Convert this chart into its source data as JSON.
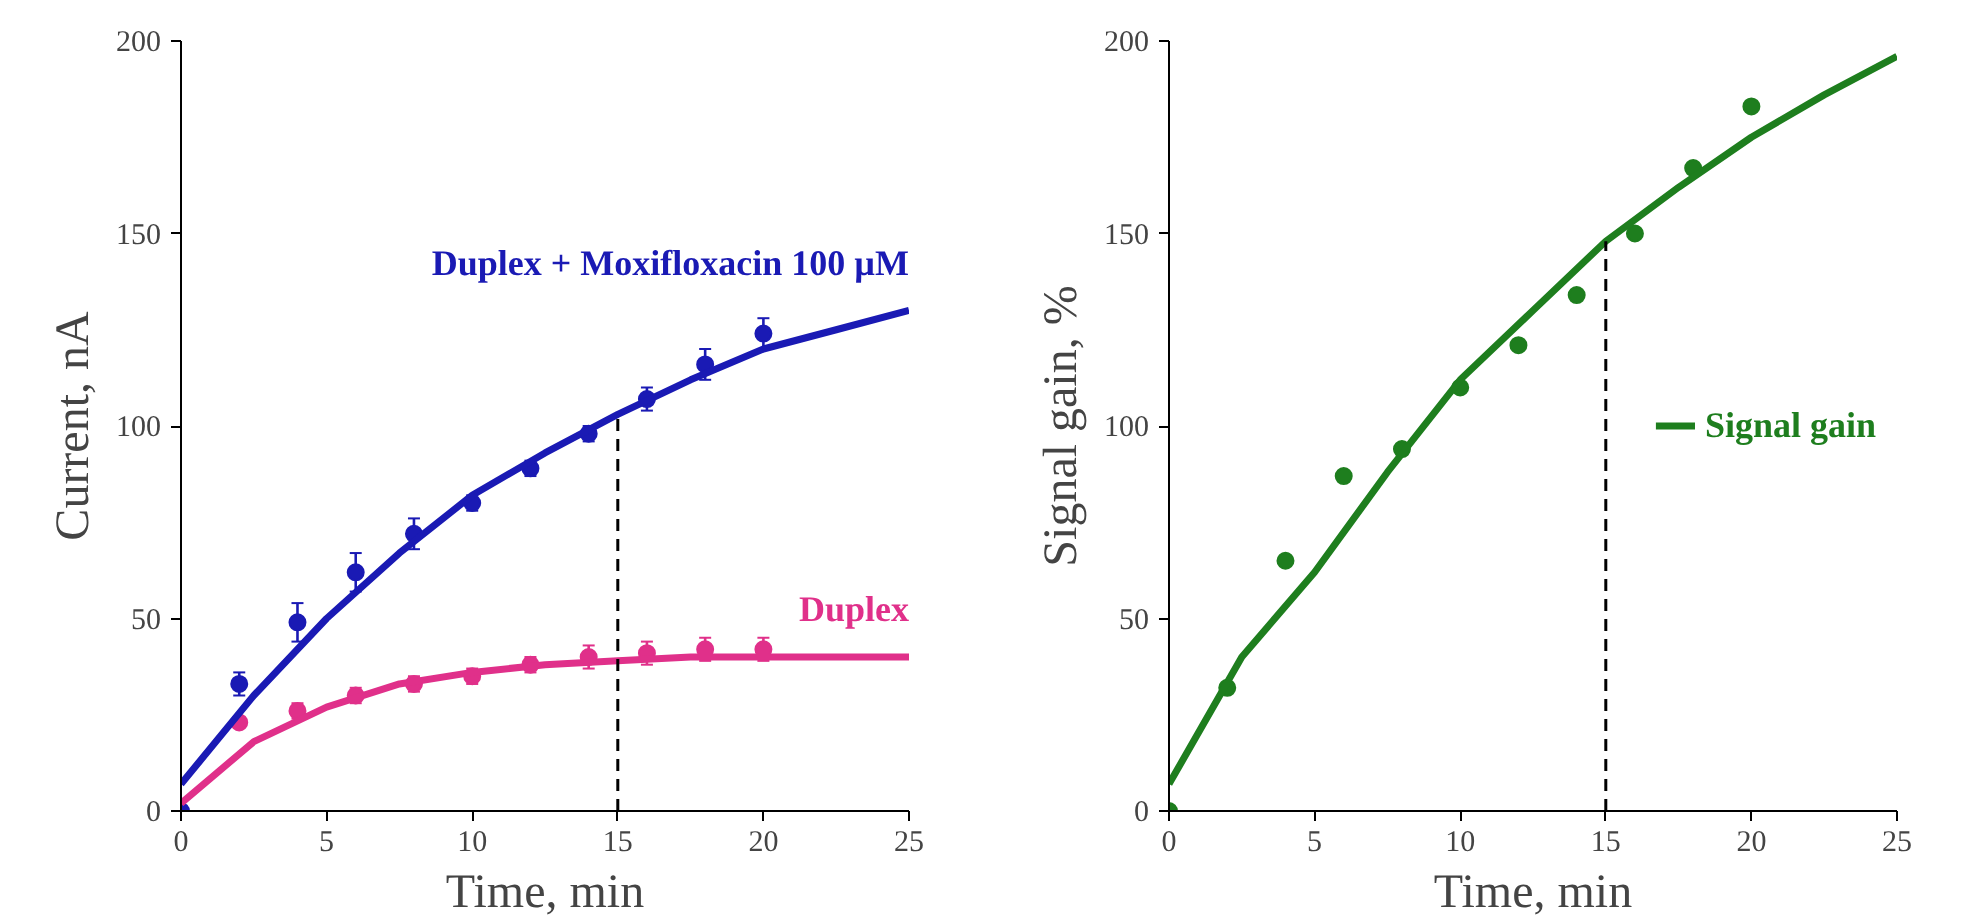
{
  "chart_data": [
    {
      "type": "scatter",
      "xlabel": "Time, min",
      "ylabel": "Current, nA",
      "xlim": [
        0,
        25
      ],
      "ylim": [
        0,
        200
      ],
      "xticks": [
        0,
        5,
        10,
        15,
        20,
        25
      ],
      "yticks": [
        0,
        50,
        100,
        150,
        200
      ],
      "grid": false,
      "legend": false,
      "marker": "circle",
      "ref_lines": [
        {
          "axis": "x",
          "value": 15,
          "line_style": "dashed",
          "color": "#000000"
        }
      ],
      "series": [
        {
          "color": "#1a1ab4",
          "x": [
            0,
            2,
            4,
            6,
            8,
            10,
            12,
            14,
            16,
            18,
            20
          ],
          "values": [
            0,
            33,
            49,
            62,
            72,
            80,
            89,
            98,
            107,
            116,
            124
          ],
          "errors": [
            null,
            3,
            5,
            5,
            4,
            2,
            2,
            2,
            3,
            4,
            4
          ]
        },
        {
          "color": "#e0308a",
          "x": [
            2,
            4,
            6,
            8,
            10,
            12,
            14,
            16,
            18,
            20
          ],
          "values": [
            23,
            26,
            30,
            33,
            35,
            38,
            40,
            41,
            42,
            42
          ],
          "errors": [
            null,
            2,
            2,
            2,
            2,
            2,
            3,
            3,
            3,
            3
          ]
        },
        {
          "type": "line",
          "name": "Duplex + Moxifloxacin 100 µM",
          "color": "#1a1ab4",
          "marker": "none",
          "x": [
            0,
            2.5,
            5,
            7.5,
            10,
            12.5,
            15,
            17.5,
            20,
            22.5,
            25
          ],
          "values": [
            7,
            30,
            50,
            67,
            82,
            93,
            103,
            112,
            120,
            125,
            130
          ]
        },
        {
          "type": "line",
          "name": "Duplex",
          "color": "#e0308a",
          "marker": "none",
          "x": [
            0,
            2.5,
            5,
            7.5,
            10,
            12.5,
            15,
            17.5,
            20,
            22.5,
            25
          ],
          "values": [
            2,
            18,
            27,
            33,
            36,
            38,
            39,
            40,
            40,
            40,
            40
          ]
        }
      ]
    },
    {
      "type": "scatter",
      "xlabel": "Time, min",
      "ylabel": "Signal gain, %",
      "xlim": [
        0,
        25
      ],
      "ylim": [
        0,
        200
      ],
      "xticks": [
        0,
        5,
        10,
        15,
        20,
        25
      ],
      "yticks": [
        0,
        50,
        100,
        150,
        200
      ],
      "grid": false,
      "legend": "right",
      "marker": "circle",
      "ref_lines": [
        {
          "axis": "x",
          "value": 15,
          "line_style": "dashed",
          "color": "#000000"
        }
      ],
      "series": [
        {
          "color": "#1e7e1e",
          "x": [
            0,
            2,
            4,
            6,
            8,
            10,
            12,
            14,
            16,
            18,
            20
          ],
          "values": [
            0,
            32,
            65,
            87,
            94,
            110,
            121,
            134,
            150,
            167,
            183
          ]
        },
        {
          "type": "line",
          "name": "Signal gain",
          "color": "#1e7e1e",
          "marker": "none",
          "x": [
            0,
            2.5,
            5,
            7.5,
            10,
            12.5,
            15,
            17.5,
            20,
            22.5,
            25
          ],
          "values": [
            7,
            40,
            62,
            88,
            112,
            130,
            148,
            162,
            175,
            186,
            196
          ]
        }
      ]
    }
  ]
}
